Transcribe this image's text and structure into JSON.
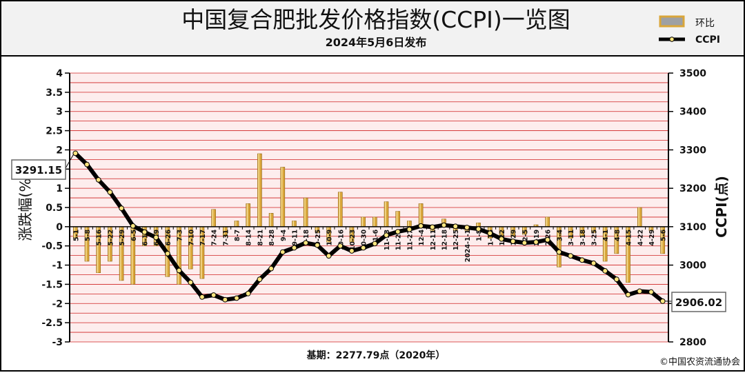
{
  "title": "中国复合肥批发价格指数(CCPI)一览图",
  "subtitle": "2024年5月6日发布",
  "footer_base": "基期：2277.79点（2020年）",
  "copyright": "©中国农资流通协会",
  "colors": {
    "bar_fill": "#D9A63A",
    "bar_edge": "#8A6010",
    "line": "#000000",
    "marker": "#FFE680",
    "grid": "#D02020",
    "plot_bg": "#FDEDED",
    "header_bg": "#F2F2F2"
  },
  "chart_data": {
    "type": "bar+line",
    "ylabel_left": "涨跌幅(%)",
    "ylabel_right": "CCPI(点)",
    "y_left_range": [
      -3,
      4
    ],
    "y_left_ticks": [
      "4",
      "3.5",
      "3",
      "2.5",
      "2",
      "1.5",
      "1",
      "0.5",
      "0",
      "-0.5",
      "-1",
      "-1.5",
      "-2",
      "-2.5",
      "-3"
    ],
    "y_right_range": [
      2800,
      3500
    ],
    "y_right_ticks": [
      "3500",
      "3400",
      "3300",
      "3200",
      "3100",
      "3000",
      "2900",
      "2800"
    ],
    "grid": true,
    "legend": [
      {
        "name": "环比",
        "kind": "bar"
      },
      {
        "name": "CCPI",
        "kind": "line"
      }
    ],
    "x_labels": [
      "5-1",
      "5-8",
      "5-16",
      "5-22",
      "5-29",
      "6-5",
      "6-12",
      "6-19",
      "6-26",
      "7-3",
      "7-10",
      "7-17",
      "7-24",
      "7-31",
      "8-7",
      "8-14",
      "8-21",
      "8-28",
      "9-4",
      "9-11",
      "9-18",
      "9-25",
      "10-9",
      "10-16",
      "10-23",
      "10-30",
      "11-6",
      "11-13",
      "11-20",
      "11-27",
      "12-4",
      "12-11",
      "12-18",
      "12-25",
      "2024-1-1",
      "1-8",
      "1-15",
      "1-22",
      "1-29",
      "2-5",
      "2-19",
      "2-26",
      "3-4",
      "3-11",
      "3-18",
      "3-25",
      "4-1",
      "4-8",
      "4-15",
      "4-22",
      "4-29",
      "5-6"
    ],
    "series": [
      {
        "name": "环比",
        "kind": "bar",
        "axis": "left",
        "values": [
          -0.3,
          -0.9,
          -1.2,
          -0.9,
          -1.4,
          -1.5,
          -0.5,
          -0.5,
          -1.3,
          -1.5,
          -1.1,
          -1.35,
          0.45,
          -0.25,
          0.15,
          0.6,
          1.9,
          0.35,
          1.55,
          0.15,
          0.75,
          -0.15,
          -0.4,
          0.9,
          -0.4,
          0.25,
          0.25,
          0.65,
          0.4,
          0.15,
          0.6,
          -0.1,
          0.2,
          -0.1,
          -0.1,
          0.1,
          -0.3,
          -0.35,
          -0.25,
          -0.2,
          0.05,
          0.25,
          -1.05,
          -0.3,
          -0.25,
          -0.15,
          -0.9,
          -0.7,
          -1.45,
          0.5,
          -0.1,
          -0.7
        ]
      },
      {
        "name": "CCPI",
        "kind": "line",
        "axis": "right",
        "values": [
          3291.15,
          3262,
          3222,
          3190,
          3148,
          3102,
          3086,
          3072,
          3030,
          2986,
          2955,
          2917,
          2922,
          2910,
          2914,
          2926,
          2963,
          2991,
          3034,
          3045,
          3058,
          3052,
          3024,
          3050,
          3037,
          3045,
          3056,
          3078,
          3087,
          3093,
          3102,
          3099,
          3104,
          3101,
          3098,
          3094,
          3083,
          3068,
          3062,
          3058,
          3060,
          3066,
          3034,
          3024,
          3013,
          3005,
          2985,
          2963,
          2923,
          2932,
          2930,
          2906.02
        ]
      }
    ],
    "annotations": [
      {
        "text": "3291.15",
        "series": "CCPI",
        "point": "first"
      },
      {
        "text": "2906.02",
        "series": "CCPI",
        "point": "last"
      }
    ]
  }
}
